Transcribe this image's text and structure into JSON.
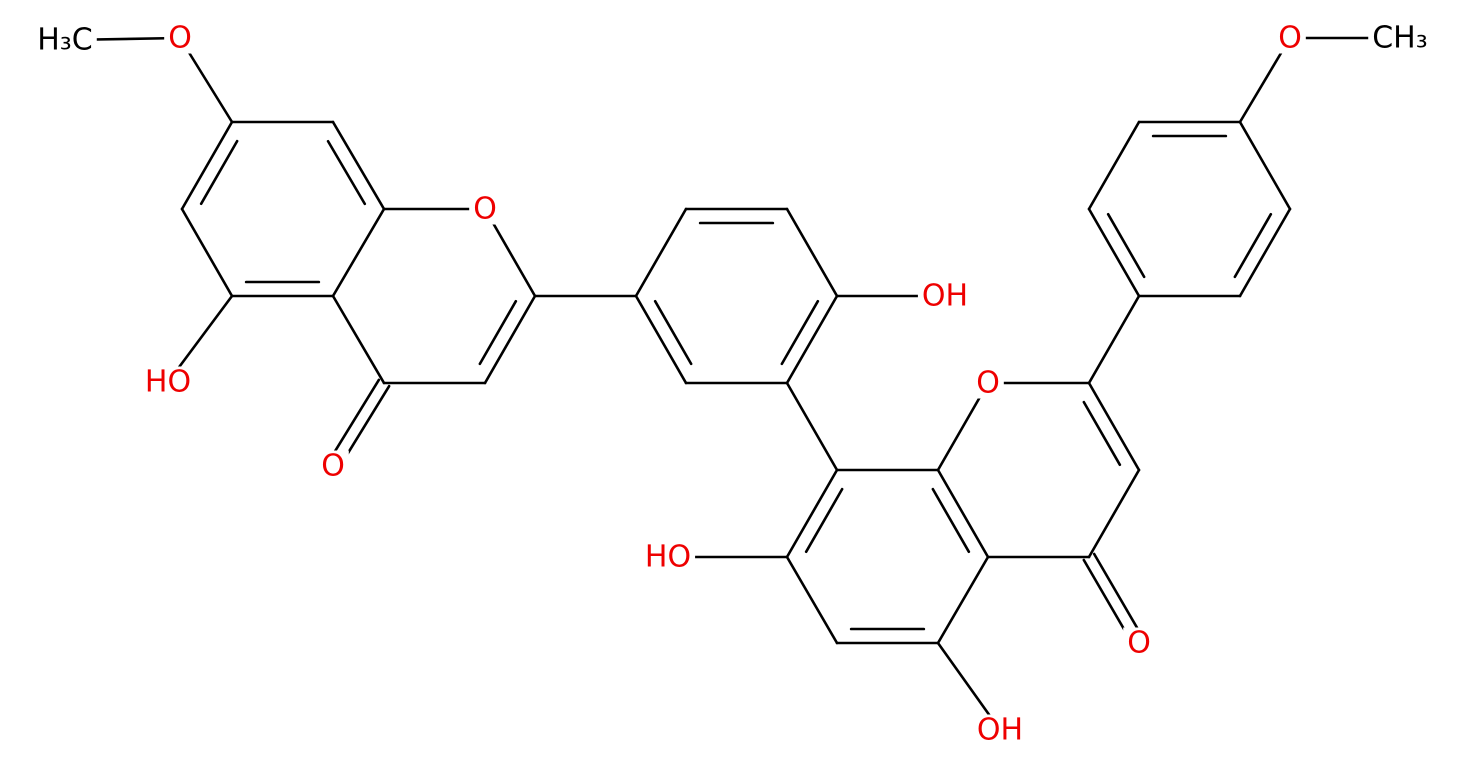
{
  "labels": [
    "H₃C",
    "O",
    "O",
    "O",
    "HO",
    "OH",
    "HO",
    "OH",
    "O",
    "O",
    "O",
    "CH₃"
  ]
}
